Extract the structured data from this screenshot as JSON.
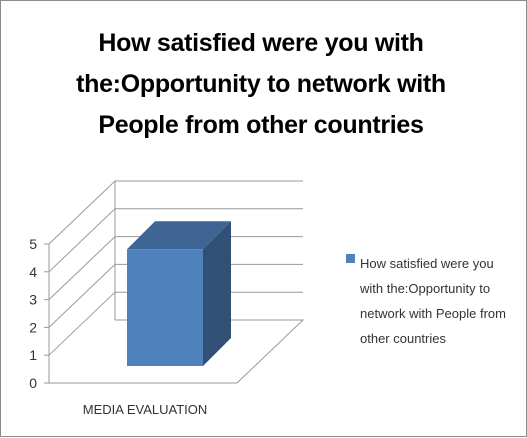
{
  "chart_data": {
    "type": "bar",
    "title": "How satisfied were you with the:Opportunity to network with People from other countries",
    "title_lines": [
      "How satisfied were you with",
      "the:Opportunity to network with",
      "People from other countries"
    ],
    "categories": [
      "MEDIA EVALUATION"
    ],
    "series": [
      {
        "name": "How satisfied were you with the:Opportunity to network with People from other countries",
        "values": [
          4.2
        ],
        "color": "#4f81bd"
      }
    ],
    "xlabel": "",
    "ylabel": "",
    "ylim": [
      0,
      5
    ],
    "yticks": [
      "0",
      "1",
      "2",
      "3",
      "4",
      "5"
    ],
    "grid": true,
    "three_d": true,
    "legend_position": "right"
  },
  "legend": {
    "lines": [
      "How satisfied were you",
      "with the:Opportunity to",
      "network with People from",
      "other countries"
    ]
  }
}
